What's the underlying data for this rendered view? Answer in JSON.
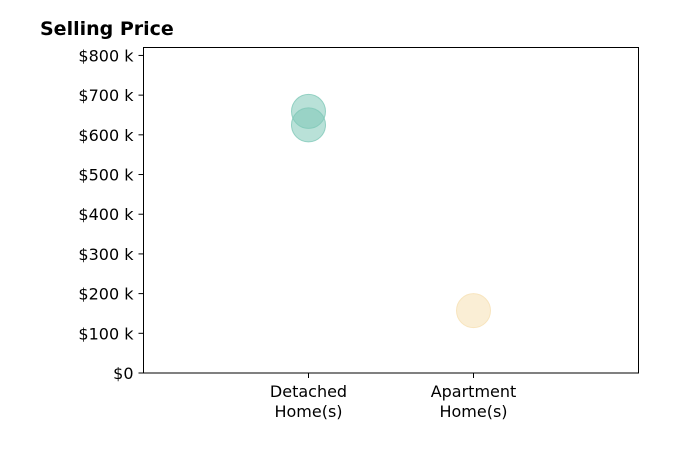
{
  "chart_data": {
    "type": "scatter",
    "title": "Selling Price",
    "xlabel": "",
    "ylabel": "",
    "categories": [
      [
        "Detached",
        "Home(s)"
      ],
      [
        "Apartment",
        "Home(s)"
      ]
    ],
    "ylim": [
      0,
      820000
    ],
    "xlim": [
      -1,
      2
    ],
    "yticks": [
      {
        "value": 0,
        "label": "$0"
      },
      {
        "value": 100000,
        "label": "$100 k"
      },
      {
        "value": 200000,
        "label": "$200 k"
      },
      {
        "value": 300000,
        "label": "$300 k"
      },
      {
        "value": 400000,
        "label": "$400 k"
      },
      {
        "value": 500000,
        "label": "$500 k"
      },
      {
        "value": 600000,
        "label": "$600 k"
      },
      {
        "value": 700000,
        "label": "$700 k"
      },
      {
        "value": 800000,
        "label": "$800 k"
      }
    ],
    "points": [
      {
        "category_index": 0,
        "value": 659000,
        "color": "#7fc8b8"
      },
      {
        "category_index": 0,
        "value": 625000,
        "color": "#7fc8b8"
      },
      {
        "category_index": 1,
        "value": 157000,
        "color": "#f6e0b3"
      }
    ],
    "grid": false,
    "legend": "none"
  }
}
